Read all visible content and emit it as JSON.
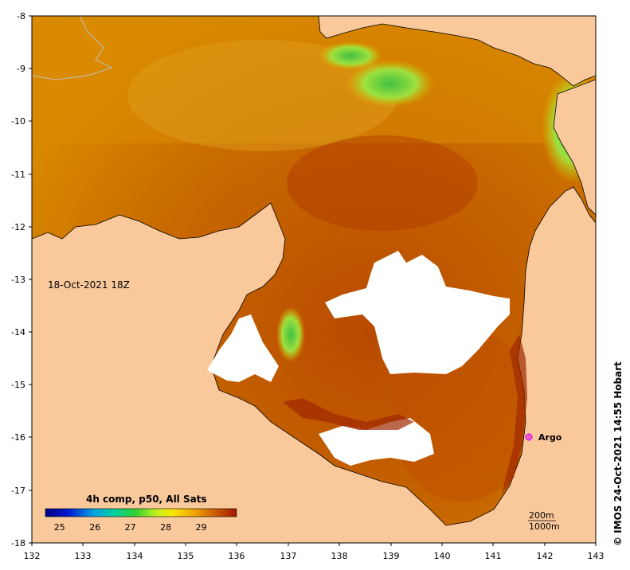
{
  "map": {
    "timestamp": "18-Oct-2021 18Z",
    "credit": "© IMOS 24-Oct-2021 14:55 Hobart",
    "x_ticks": [
      "132",
      "133",
      "134",
      "135",
      "136",
      "137",
      "138",
      "139",
      "140",
      "141",
      "142",
      "143"
    ],
    "y_ticks": [
      "-8",
      "-9",
      "-10",
      "-11",
      "-12",
      "-13",
      "-14",
      "-15",
      "-16",
      "-17",
      "-18"
    ],
    "xlim": [
      132,
      143
    ],
    "ylim": [
      -18,
      -8
    ],
    "colors": {
      "land": "#f9c89b",
      "no_data": "#ffffff",
      "sst_warm": "#b84a00",
      "sst_mid": "#d98a00",
      "sst_cool": "#7cd34a",
      "argo": "#e020e0"
    }
  },
  "legend": {
    "title": "4h comp, p50, All Sats",
    "ticks": [
      "25",
      "26",
      "27",
      "28",
      "29"
    ],
    "range": [
      24.6,
      30
    ]
  },
  "argo": {
    "label": "Argo",
    "lon": 141.7,
    "lat": -16.0
  },
  "contours": {
    "line1": "200m",
    "line2": "1000m"
  }
}
